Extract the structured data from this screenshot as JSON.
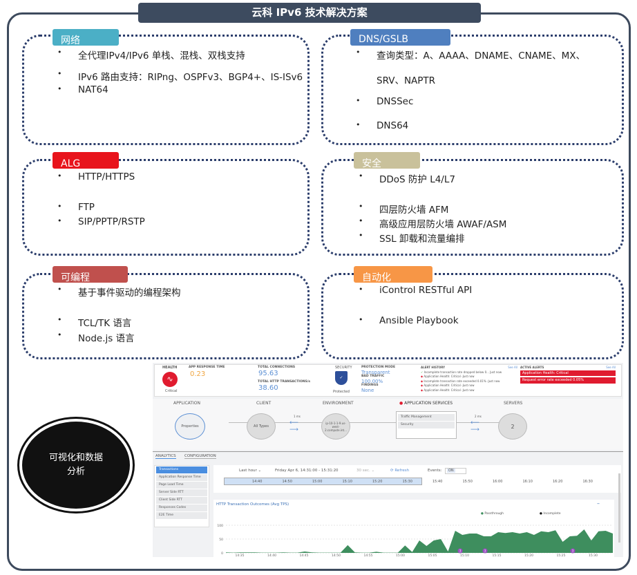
{
  "title": "云科 IPv6 技术解决方案",
  "panels": [
    {
      "tag": "网络",
      "color": "#4bafc6",
      "items": [
        "全代理IPv4/IPv6 单栈、混栈、双栈支持",
        "IPv6 路由支持：RIPng、OSPFv3、BGP4+、IS-ISv6",
        "NAT64"
      ]
    },
    {
      "tag": "DNS/GSLB",
      "color": "#4f7fbf",
      "items": [
        "查询类型：A、AAAA、DNAME、CNAME、MX、",
        "SRV、NAPTR",
        "DNSSec",
        "DNS64"
      ]
    },
    {
      "tag": "ALG",
      "color": "#e8141c",
      "items": [
        "HTTP/HTTPS",
        "FTP",
        "SIP/PPTP/RSTP"
      ]
    },
    {
      "tag": "安全",
      "color": "#c9c19b",
      "items": [
        "DDoS 防护 L4/L7",
        "四层防火墙 AFM",
        "高级应用层防火墙 AWAF/ASM",
        "SSL 卸载和流量编排"
      ]
    },
    {
      "tag": "可编程",
      "color": "#c0504d",
      "items": [
        "基于事件驱动的编程架构",
        "TCL/TK 语言",
        "Node.js 语言"
      ]
    },
    {
      "tag": "自动化",
      "color": "#f79646",
      "items": [
        "iControl RESTful API",
        "Ansible Playbook"
      ]
    }
  ],
  "circle": "可视化和数据分析",
  "dashboard": {
    "health": {
      "label": "HEALTH",
      "status": "Critical"
    },
    "app_response": {
      "label": "APP RESPONSE TIME",
      "value": "0.23"
    },
    "connections": {
      "label": "TOTAL CONNECTIONS",
      "value": "95.63",
      "http_label": "TOTAL HTTP TRANSACTIONS/s",
      "http_value": "38.60"
    },
    "security": {
      "label": "SECURITY",
      "status": "Protected"
    },
    "protection": {
      "mode_label": "PROTECTION MODE",
      "mode": "Transparent",
      "bad_label": "BAD TRAFFIC",
      "bad": "100.00%",
      "findings_label": "FINDINGS",
      "findings": "None"
    },
    "alert_history": {
      "label": "ALERT HISTORY",
      "see_all": "See All",
      "items": [
        "Incomplete transaction rate dropped below 0... Just now",
        "Application Health: Critical -Just now",
        "Incomplete transaction rate exceeded 0.01% -Just now",
        "Application Health: Critical -Just now",
        "Application Health: Critical -Just now"
      ]
    },
    "active_alerts": {
      "label": "ACTIVE ALERTS",
      "see_all": "See All",
      "items": [
        "Application Health: Critical",
        "Request error rate exceeded 0.05%"
      ]
    },
    "flow": {
      "application": "APPLICATION",
      "properties": "Properties",
      "client": "CLIENT",
      "all_types": "All Types",
      "environment": "ENVIRONMENT",
      "env_node": "ip-10-1-1-9.us-west-2.compute.int...",
      "app_services": "APPLICATION SERVICES",
      "services": [
        "Traffic Management",
        "Security"
      ],
      "servers": "SERVERS",
      "server_count": "2",
      "client_latency": "1 ms",
      "server_latency": "2 ms"
    },
    "tabs": [
      "ANALYTICS",
      "CONFIGURATION"
    ],
    "side": [
      "Transactions",
      "Application Response Time",
      "Page Load Time",
      "Server Side RTT",
      "Client Side RTT",
      "Responses Codes",
      "E2E Time"
    ],
    "toolbar": {
      "range": "Last hour ⌄",
      "period": "Friday Apr 6, 14:31:00 - 15:31:20",
      "interval": "30 sec. ⌄",
      "refresh": "⟳ Refresh",
      "events": "Events:",
      "on": "ON"
    },
    "timeline": [
      "14:40",
      "14:50",
      "15:00",
      "15:10",
      "15:20",
      "15:30",
      "15:40",
      "15:50",
      "16:00",
      "16:10",
      "16:20",
      "16:30"
    ]
  },
  "chart_data": {
    "type": "area",
    "title": "HTTP Transaction Outcomes (Avg TPS)",
    "legend": [
      "Passthrough",
      "Incomplete"
    ],
    "colors": {
      "Passthrough": "#3e8e5e",
      "Incomplete": "#111111"
    },
    "yticks": [
      "0",
      "50",
      "100"
    ],
    "ylim": [
      0,
      110
    ],
    "xticks": [
      "14:35",
      "14:40",
      "14:45",
      "14:50",
      "14:55",
      "15:00",
      "15:05",
      "15:10",
      "15:15",
      "15:20",
      "15:25",
      "15:30"
    ],
    "series": [
      {
        "name": "Passthrough",
        "values": [
          2,
          1,
          2,
          2,
          2,
          1,
          1,
          1,
          2,
          1,
          1,
          5,
          2,
          1,
          1,
          1,
          1,
          28,
          2,
          1,
          1,
          4,
          1,
          1,
          1,
          27,
          3,
          45,
          25,
          45,
          50,
          5,
          80,
          65,
          70,
          70,
          60,
          60,
          75,
          72,
          75,
          70,
          75,
          65,
          78,
          75,
          82,
          40,
          60,
          62,
          85,
          45,
          78,
          80,
          70
        ]
      }
    ],
    "event_markers": [
      "3",
      "3",
      "3"
    ]
  }
}
